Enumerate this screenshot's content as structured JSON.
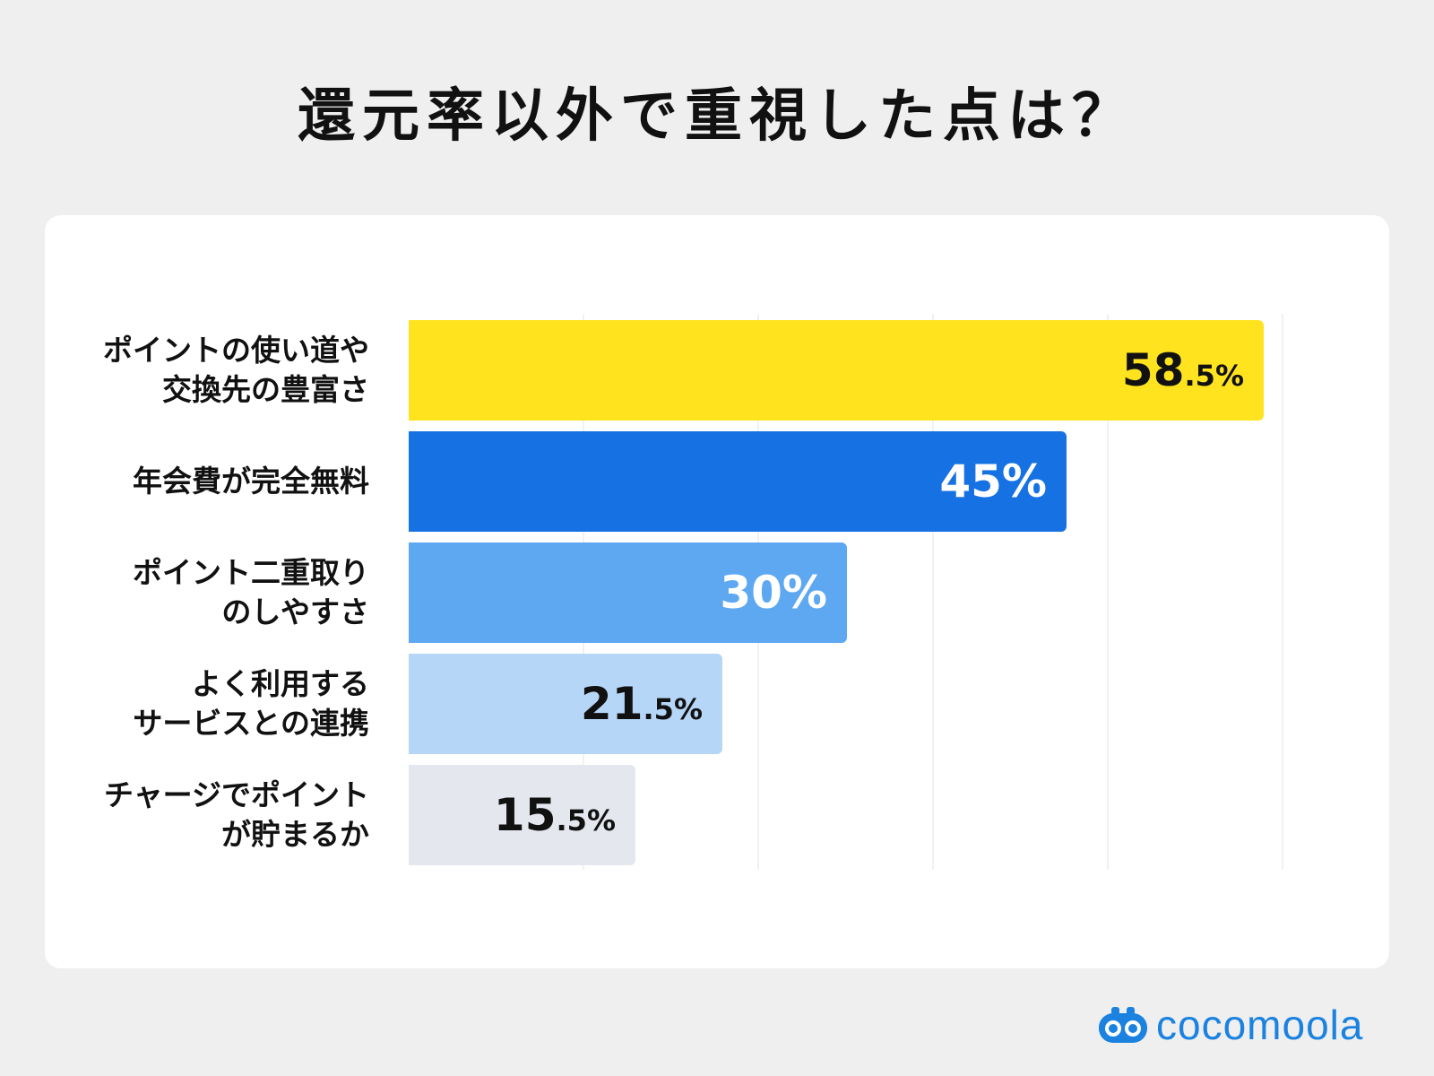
{
  "chart_data": {
    "type": "bar",
    "orientation": "horizontal",
    "title": "還元率以外で重視した点は？",
    "categories": [
      "ポイントの使い道や\n交換先の豊富さ",
      "年会費が完全無料",
      "ポイント二重取り\nのしやすさ",
      "よく利用する\nサービスとの連携",
      "チャージでポイント\nが貯まるか"
    ],
    "values": [
      58.5,
      45,
      30,
      21.5,
      15.5
    ],
    "value_labels": [
      "58.5%",
      "45%",
      "30%",
      "21.5%",
      "15.5%"
    ],
    "unit": "%",
    "xlim": [
      0,
      60
    ],
    "grid": true,
    "legend": "none",
    "bar_colors": [
      "#ffe31f",
      "#1672e3",
      "#5ea8f2",
      "#b6d6f8",
      "#e4e8ee"
    ],
    "label_colors": [
      "#111111",
      "#ffffff",
      "#ffffff",
      "#111111",
      "#111111"
    ]
  },
  "brand": {
    "name": "cocomoola",
    "color": "#1b82e0",
    "icon": "binoculars-logo-icon"
  }
}
